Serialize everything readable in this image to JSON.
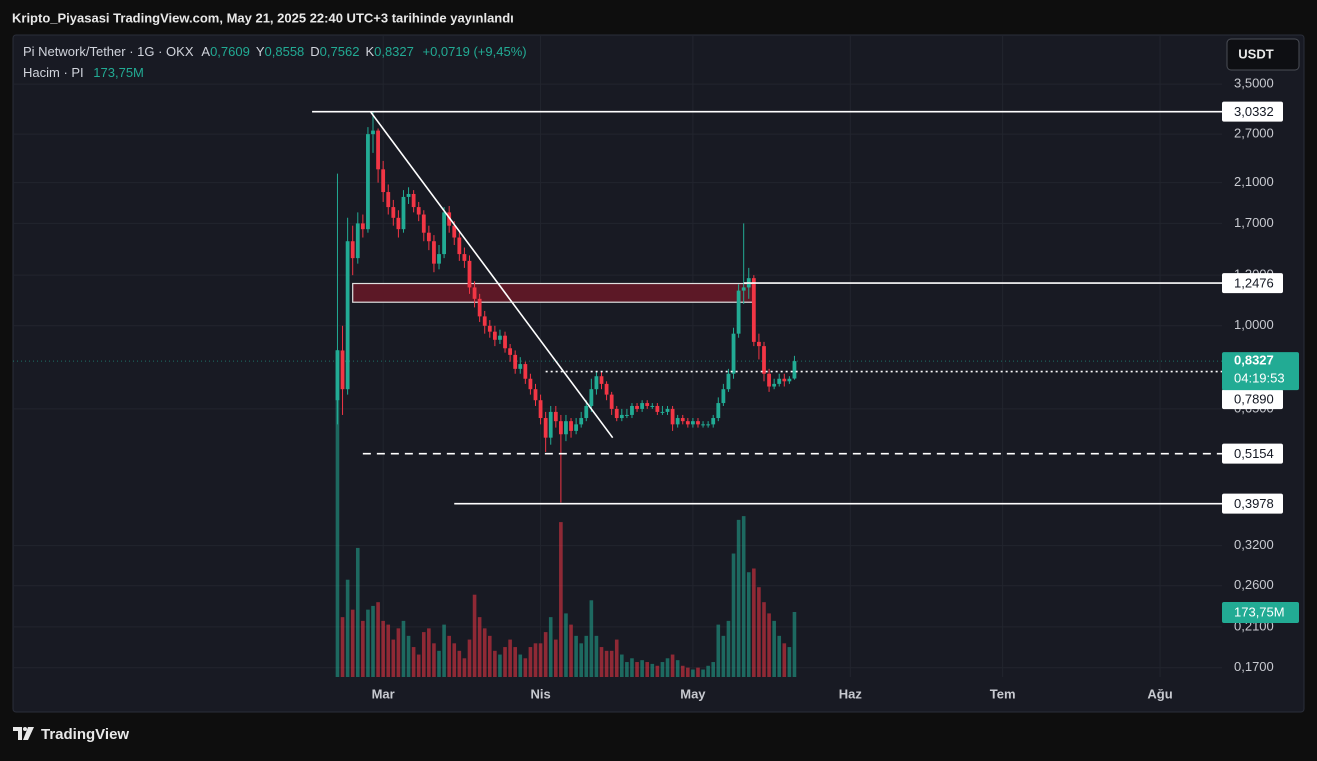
{
  "header": "Kripto_Piyasasi TradingView.com, May 21, 2025 22:40 UTC+3 tarihinde yayınlandı",
  "footer": "TradingView",
  "chart_data": {
    "type": "candlestick",
    "currency": "USDT",
    "legend": {
      "symbol": "Pi Network/Tether · 1G · OKX",
      "items": [
        {
          "key": "A",
          "value": "0,7609"
        },
        {
          "key": "Y",
          "value": "0,8558"
        },
        {
          "key": "D",
          "value": "0,7562"
        },
        {
          "key": "K",
          "value": "0,8327"
        }
      ],
      "change": "+0,0719 (+9,45%)"
    },
    "volume_legend": {
      "name": "Hacim · PI",
      "value": "173,75M"
    },
    "log_scale": true,
    "grid": true,
    "price_line": true,
    "up_color": "#22ab94",
    "down_color": "#f23645",
    "open": [
      0.68,
      0.88,
      0.72,
      1.55,
      1.42,
      1.7,
      1.65,
      2.7,
      2.75,
      2.25,
      2.0,
      1.85,
      1.75,
      1.65,
      1.95,
      1.98,
      1.85,
      1.78,
      1.62,
      1.55,
      1.38,
      1.45,
      1.8,
      1.68,
      1.58,
      1.45,
      1.4,
      1.22,
      1.15,
      1.05,
      1.0,
      0.97,
      0.93,
      0.95,
      0.89,
      0.86,
      0.8,
      0.82,
      0.76,
      0.72,
      0.68,
      0.62,
      0.56,
      0.64,
      0.61,
      0.57,
      0.61,
      0.58,
      0.6,
      0.62,
      0.66,
      0.72,
      0.77,
      0.74,
      0.7,
      0.65,
      0.62,
      0.63,
      0.63,
      0.66,
      0.65,
      0.67,
      0.66,
      0.66,
      0.64,
      0.64,
      0.65,
      0.6,
      0.62,
      0.61,
      0.6,
      0.61,
      0.6,
      0.6,
      0.6,
      0.62,
      0.67,
      0.72,
      0.78,
      0.96,
      1.2,
      1.22,
      1.28,
      0.92,
      0.9,
      0.78,
      0.73,
      0.74,
      0.76,
      0.75,
      0.7609
    ],
    "high": [
      2.2,
      1.0,
      1.75,
      1.68,
      1.8,
      1.78,
      2.8,
      3.03,
      2.78,
      2.35,
      2.08,
      1.92,
      1.82,
      2.02,
      2.05,
      2.02,
      1.9,
      1.82,
      1.68,
      1.6,
      1.52,
      1.85,
      1.86,
      1.72,
      1.62,
      1.5,
      1.44,
      1.26,
      1.18,
      1.08,
      1.03,
      1.0,
      0.98,
      0.97,
      0.91,
      0.88,
      0.85,
      0.83,
      0.78,
      0.74,
      0.7,
      0.64,
      0.66,
      0.66,
      0.63,
      0.63,
      0.62,
      0.62,
      0.64,
      0.68,
      0.76,
      0.79,
      0.79,
      0.75,
      0.71,
      0.66,
      0.65,
      0.65,
      0.67,
      0.67,
      0.68,
      0.68,
      0.67,
      0.67,
      0.66,
      0.66,
      0.66,
      0.63,
      0.63,
      0.62,
      0.62,
      0.62,
      0.61,
      0.61,
      0.63,
      0.69,
      0.74,
      0.8,
      0.99,
      1.24,
      1.7,
      1.35,
      1.3,
      0.96,
      0.92,
      0.8,
      0.76,
      0.78,
      0.78,
      0.77,
      0.8558
    ],
    "low": [
      0.6,
      0.63,
      0.7,
      1.3,
      1.38,
      1.58,
      1.62,
      2.45,
      2.1,
      1.9,
      1.78,
      1.68,
      1.58,
      1.62,
      1.88,
      1.8,
      1.72,
      1.55,
      1.48,
      1.32,
      1.34,
      1.42,
      1.62,
      1.52,
      1.4,
      1.35,
      1.18,
      1.1,
      1.02,
      0.96,
      0.94,
      0.9,
      0.91,
      0.87,
      0.83,
      0.78,
      0.78,
      0.74,
      0.7,
      0.66,
      0.6,
      0.52,
      0.54,
      0.59,
      0.4,
      0.55,
      0.56,
      0.57,
      0.59,
      0.61,
      0.64,
      0.7,
      0.72,
      0.68,
      0.63,
      0.61,
      0.61,
      0.62,
      0.62,
      0.64,
      0.64,
      0.65,
      0.65,
      0.63,
      0.63,
      0.63,
      0.58,
      0.59,
      0.6,
      0.59,
      0.59,
      0.59,
      0.59,
      0.59,
      0.59,
      0.61,
      0.66,
      0.71,
      0.76,
      0.94,
      1.12,
      1.15,
      0.9,
      0.84,
      0.75,
      0.71,
      0.72,
      0.73,
      0.73,
      0.74,
      0.7562
    ],
    "close": [
      0.88,
      0.72,
      1.55,
      1.42,
      1.7,
      1.65,
      2.7,
      2.75,
      2.25,
      2.0,
      1.85,
      1.75,
      1.65,
      1.95,
      1.98,
      1.85,
      1.78,
      1.62,
      1.55,
      1.38,
      1.45,
      1.8,
      1.68,
      1.58,
      1.45,
      1.4,
      1.22,
      1.15,
      1.05,
      1.0,
      0.97,
      0.93,
      0.95,
      0.89,
      0.86,
      0.8,
      0.82,
      0.76,
      0.72,
      0.68,
      0.62,
      0.56,
      0.64,
      0.61,
      0.57,
      0.61,
      0.58,
      0.6,
      0.62,
      0.66,
      0.72,
      0.77,
      0.74,
      0.7,
      0.65,
      0.62,
      0.63,
      0.63,
      0.66,
      0.65,
      0.67,
      0.66,
      0.66,
      0.64,
      0.64,
      0.65,
      0.6,
      0.62,
      0.61,
      0.6,
      0.61,
      0.6,
      0.6,
      0.6,
      0.62,
      0.67,
      0.72,
      0.78,
      0.96,
      1.2,
      1.22,
      1.28,
      0.92,
      0.9,
      0.78,
      0.73,
      0.74,
      0.76,
      0.75,
      0.76,
      0.8327
    ],
    "volume": [
      874,
      160,
      260,
      180,
      345,
      150,
      180,
      190,
      200,
      150,
      140,
      100,
      130,
      150,
      110,
      80,
      60,
      120,
      130,
      90,
      70,
      140,
      110,
      90,
      70,
      50,
      100,
      220,
      160,
      130,
      110,
      70,
      60,
      80,
      100,
      80,
      60,
      50,
      80,
      90,
      90,
      120,
      160,
      100,
      414,
      170,
      140,
      110,
      90,
      110,
      205,
      110,
      80,
      70,
      70,
      100,
      60,
      40,
      50,
      40,
      45,
      40,
      35,
      30,
      40,
      50,
      60,
      45,
      30,
      25,
      20,
      25,
      20,
      30,
      40,
      140,
      110,
      150,
      330,
      420,
      430,
      280,
      290,
      240,
      200,
      170,
      150,
      110,
      90,
      80,
      173.75
    ],
    "last_volume_label": "173,75M",
    "countdown": "04:19:53",
    "xlim": [
      -63.9,
      174.2
    ],
    "xticks": [
      {
        "value": 9,
        "label": "Mar"
      },
      {
        "value": 40,
        "label": "Nis"
      },
      {
        "value": 70,
        "label": "May"
      },
      {
        "value": 101,
        "label": "Haz"
      },
      {
        "value": 131,
        "label": "Tem"
      },
      {
        "value": 162,
        "label": "Ağu"
      }
    ],
    "ylim": [
      0.162,
      4.49
    ],
    "yticks": [
      {
        "value": 3.5,
        "label": "3,5000"
      },
      {
        "value": 2.7,
        "label": "2,7000"
      },
      {
        "value": 2.1,
        "label": "2,1000"
      },
      {
        "value": 1.7,
        "label": "1,7000"
      },
      {
        "value": 1.3,
        "label": "1,3000"
      },
      {
        "value": 1.0,
        "label": "1,0000"
      },
      {
        "value": 0.65,
        "label": "0,6500"
      },
      {
        "value": 0.32,
        "label": "0,3200"
      },
      {
        "value": 0.26,
        "label": "0,2600"
      },
      {
        "value": 0.21,
        "label": "0,2100"
      },
      {
        "value": 0.17,
        "label": "0,1700"
      }
    ],
    "levels": [
      {
        "value": 3.0332,
        "label": "3,0332",
        "start": -5,
        "style": "solid"
      },
      {
        "value": 1.2476,
        "label": "1,2476",
        "start": 80,
        "style": "solid"
      },
      {
        "value": 0.789,
        "label": "0,7890",
        "start": 41,
        "style": "dotted"
      },
      {
        "value": 0.5154,
        "label": "0,5154",
        "start": 5,
        "style": "dashed"
      },
      {
        "value": 0.3978,
        "label": "0,3978",
        "start": 23,
        "style": "solid"
      }
    ],
    "zone": {
      "start": 3,
      "end": 82,
      "from": 1.13,
      "to": 1.245,
      "color": "#5c1826"
    },
    "trendline": {
      "x": [
        6.5,
        54.2
      ],
      "y": [
        3.0332,
        0.56
      ]
    }
  }
}
